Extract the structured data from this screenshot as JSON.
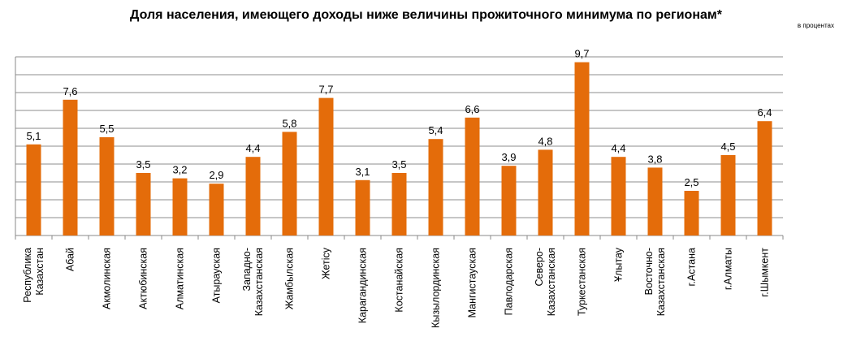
{
  "chart_data": {
    "type": "bar",
    "title": "Доля населения, имеющего доходы ниже величины прожиточного минимума по регионам*",
    "unit_note": "в процентах",
    "xlabel": "",
    "ylabel": "",
    "ylim": [
      0,
      10
    ],
    "grid": true,
    "y_ticks_shown": false,
    "bar_color": "#E46C0A",
    "categories": [
      "Республика Казахстан",
      "Абай",
      "Акмолинская",
      "Актюбинская",
      "Алматинская",
      "Атырауская",
      "Западно-Казахстанская",
      "Жамбылская",
      "Жетісу",
      "Карагандинская",
      "Костанайская",
      "Кызылординская",
      "Мангистауская",
      "Павлодарская",
      "Северо-Казахстанская",
      "Туркестанская",
      "Ұлытау",
      "Восточно-Казахстанская",
      "г.Астана",
      "г.Алматы",
      "г.Шымкент"
    ],
    "values": [
      5.1,
      7.6,
      5.5,
      3.5,
      3.2,
      2.9,
      4.4,
      5.8,
      7.7,
      3.1,
      3.5,
      5.4,
      6.6,
      3.9,
      4.8,
      9.7,
      4.4,
      3.8,
      2.5,
      4.5,
      6.4
    ],
    "value_labels": [
      "5,1",
      "7,6",
      "5,5",
      "3,5",
      "3,2",
      "2,9",
      "4,4",
      "5,8",
      "7,7",
      "3,1",
      "3,5",
      "5,4",
      "6,6",
      "3,9",
      "4,8",
      "9,7",
      "4,4",
      "3,8",
      "2,5",
      "4,5",
      "6,4"
    ]
  }
}
